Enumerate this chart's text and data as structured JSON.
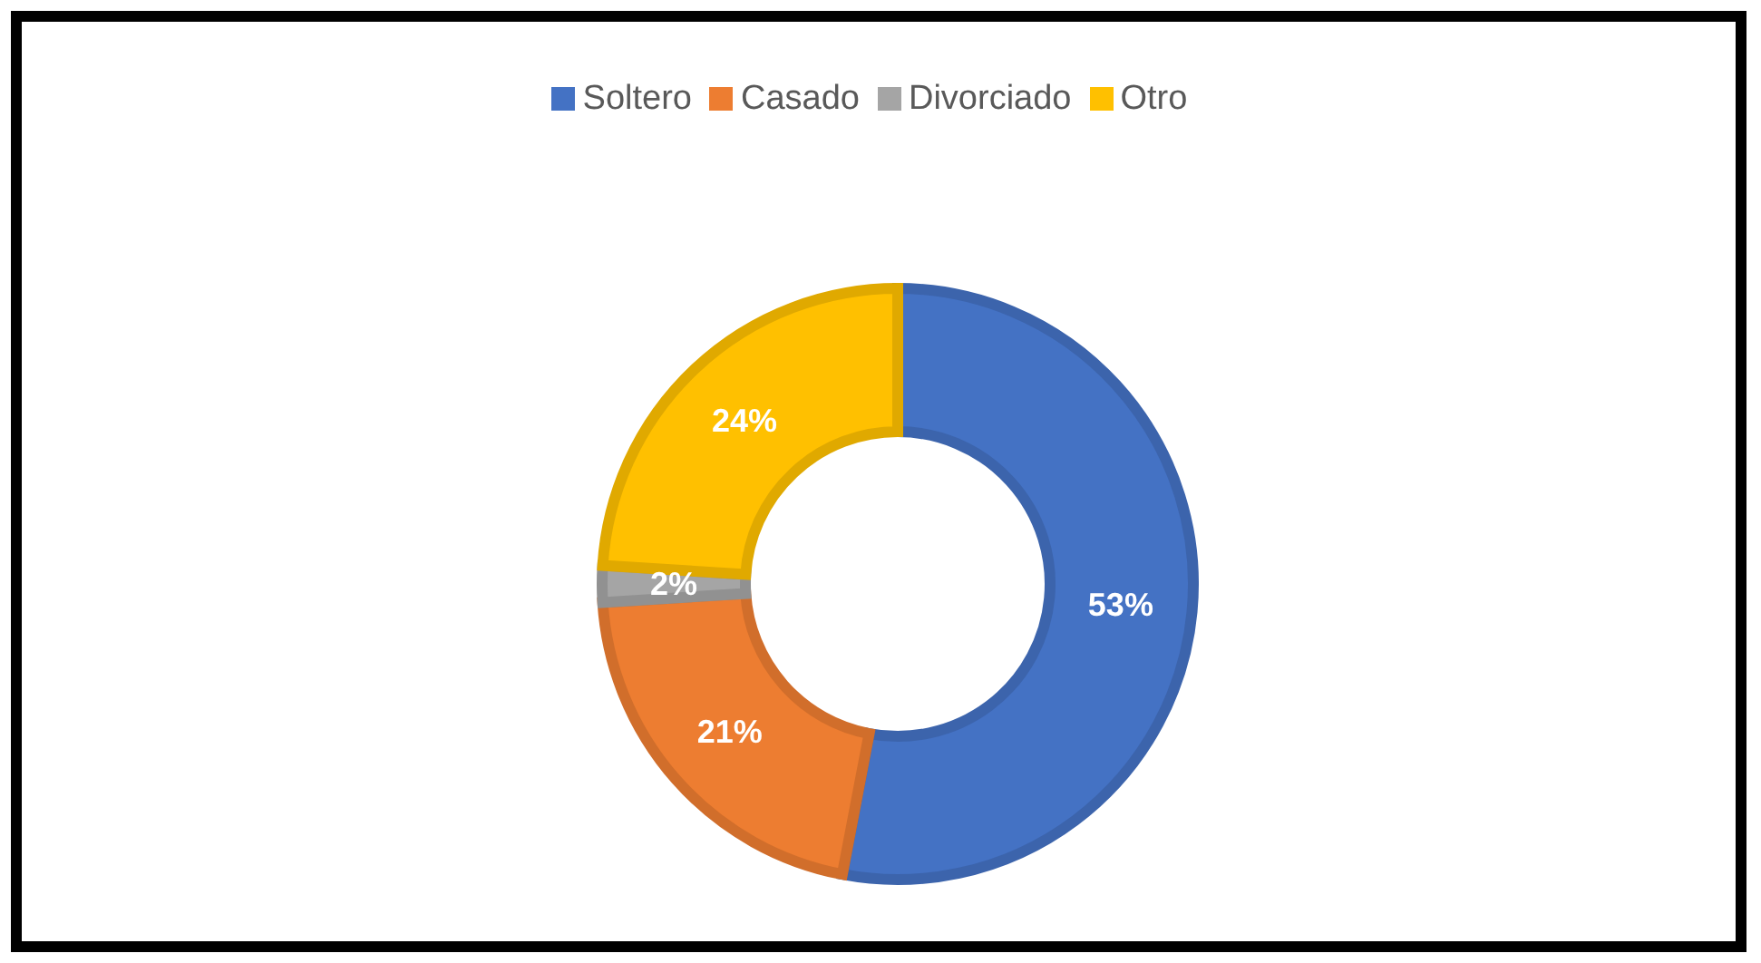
{
  "chart_data": {
    "type": "donut",
    "categories": [
      "Soltero",
      "Casado",
      "Divorciado",
      "Otro"
    ],
    "values": [
      53,
      21,
      2,
      24
    ],
    "colors": [
      "#4472c4",
      "#ed7d31",
      "#a5a5a5",
      "#ffc000"
    ],
    "value_labels": [
      "53%",
      "21%",
      "2%",
      "24%"
    ],
    "legend": "top"
  }
}
